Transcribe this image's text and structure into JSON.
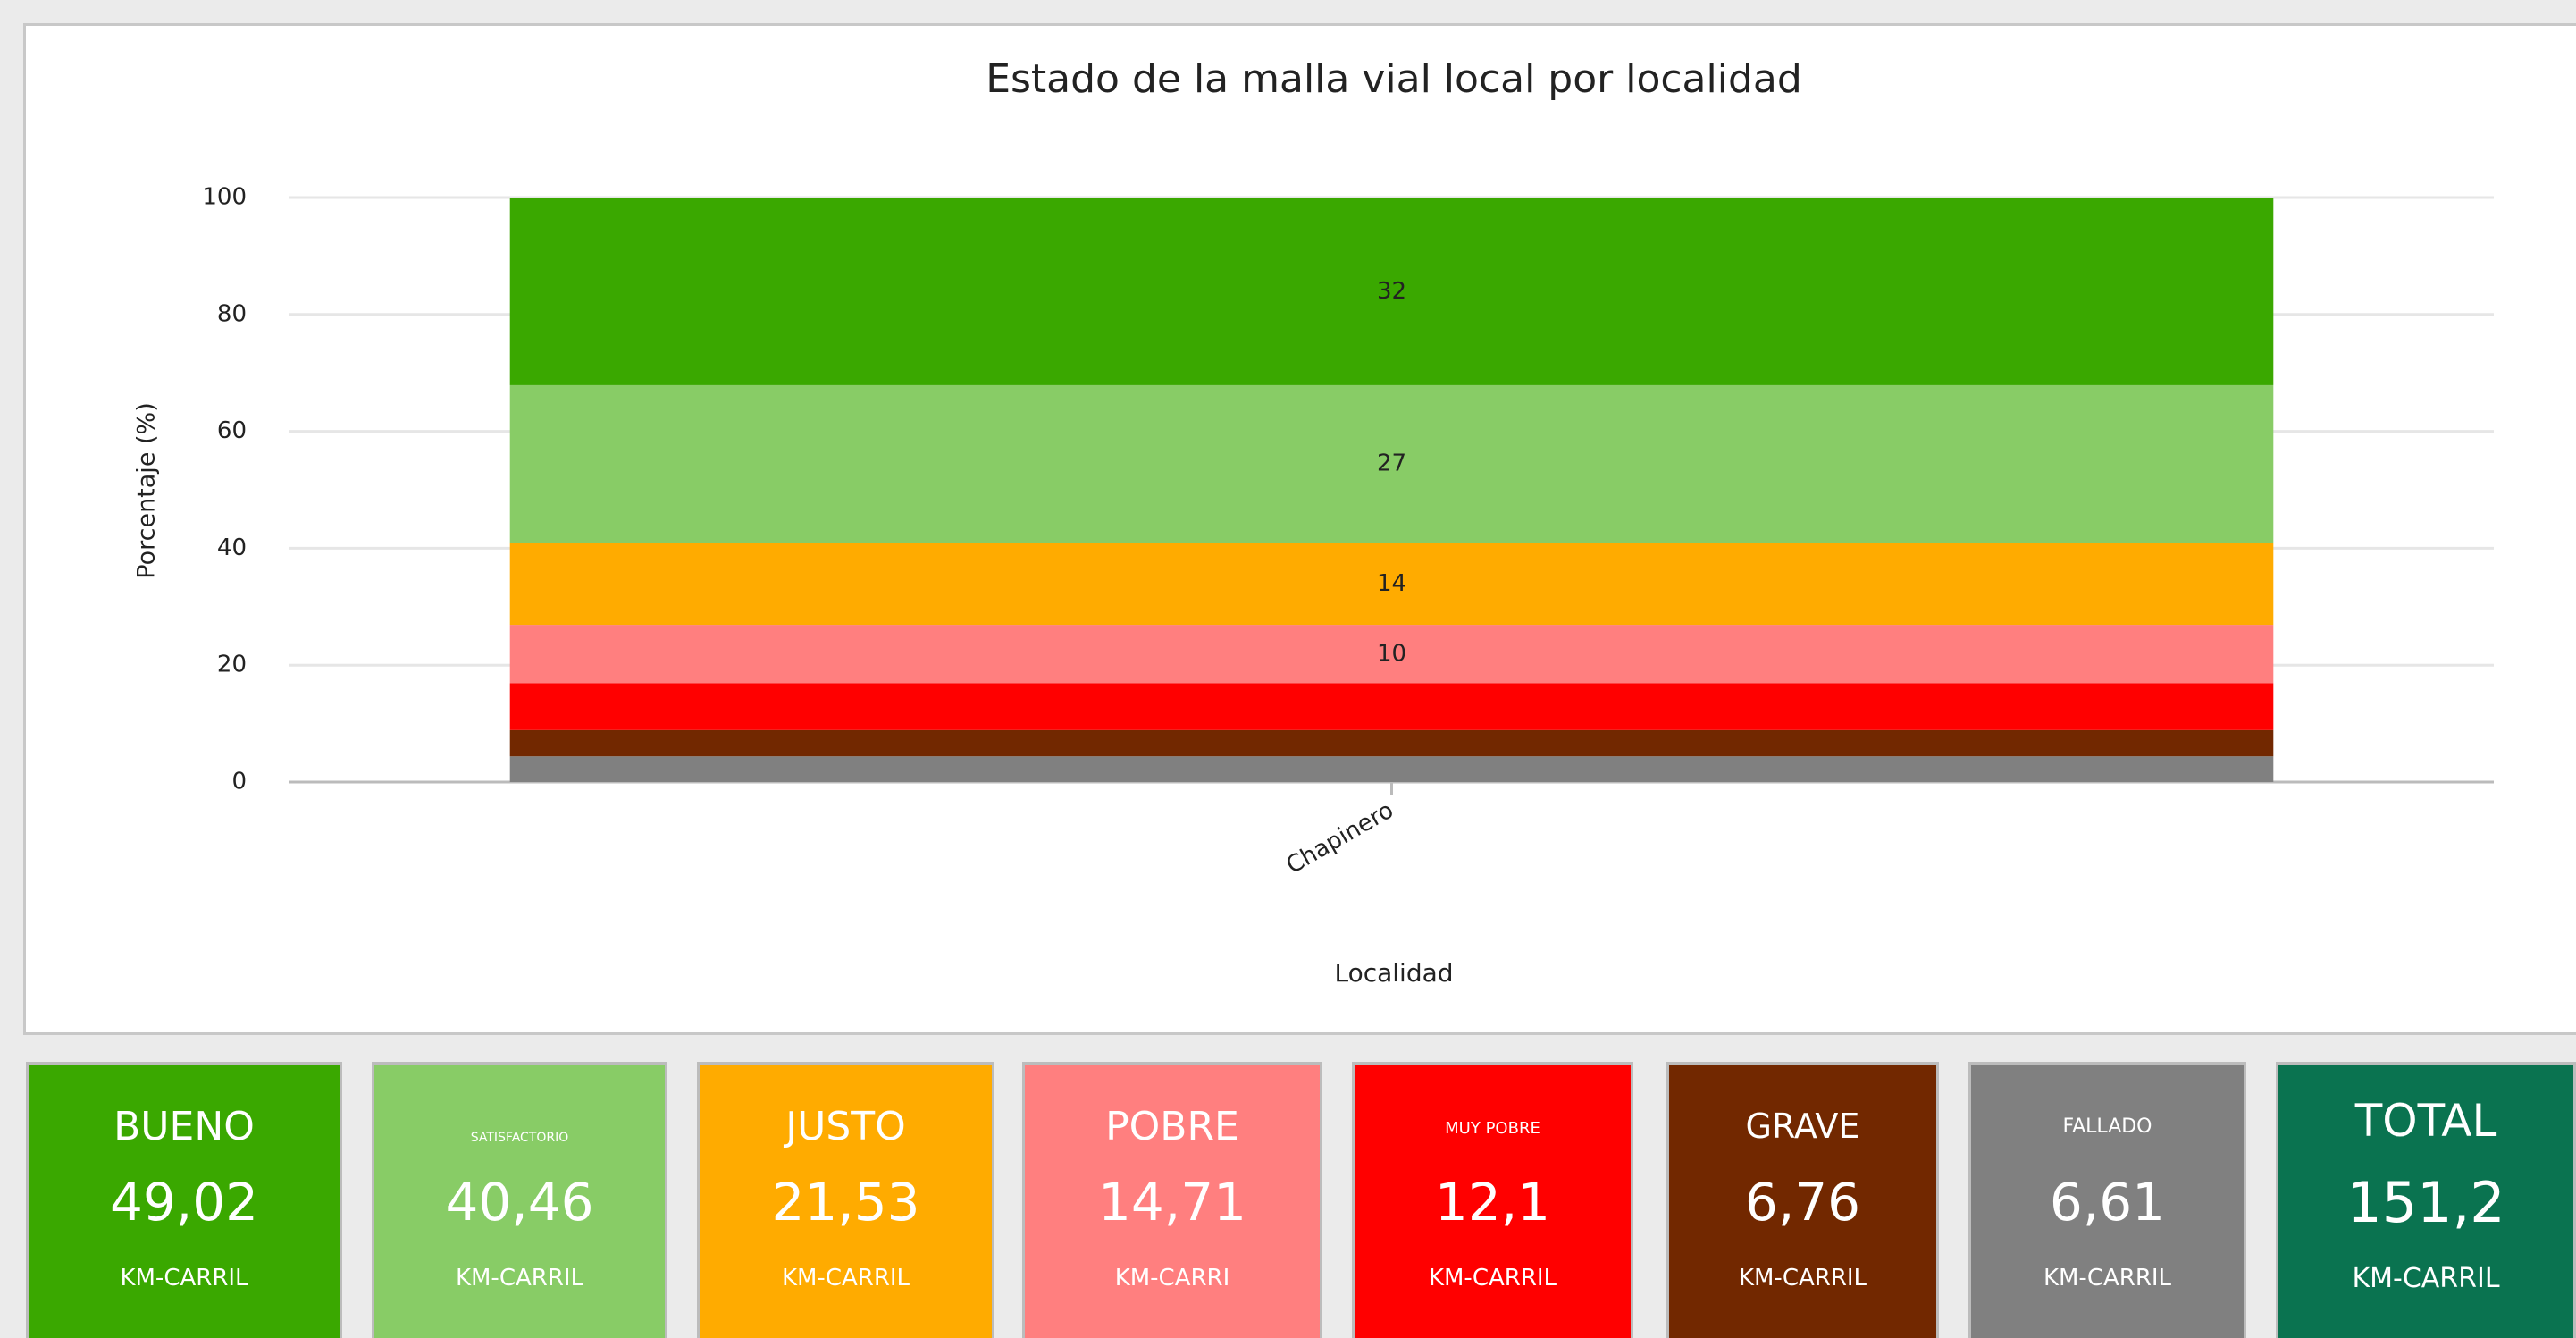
{
  "chart_data": {
    "type": "stacked-bar",
    "title": "Estado de la malla vial local por localidad",
    "y_label": "Porcentaje (%)",
    "x_label": "Localidad",
    "categories": [
      "Chapinero"
    ],
    "ylim": [
      0,
      100
    ],
    "yticks": [
      0,
      20,
      40,
      60,
      80,
      100
    ],
    "grid": true,
    "series": [
      {
        "color": "#808080",
        "values": [
          4.4
        ],
        "labeled": false
      },
      {
        "color": "#722800",
        "values": [
          4.5
        ],
        "labeled": false
      },
      {
        "color": "#ff0000",
        "values": [
          8
        ],
        "labeled": false
      },
      {
        "color": "#ff7f7f",
        "values": [
          10
        ],
        "labeled": true
      },
      {
        "color": "#ffab00",
        "values": [
          14
        ],
        "labeled": true
      },
      {
        "color": "#88cc66",
        "values": [
          27
        ],
        "labeled": true
      },
      {
        "color": "#3aa800",
        "values": [
          32
        ],
        "labeled": true
      }
    ]
  },
  "cards": [
    {
      "label": "BUENO",
      "value": "49,02",
      "unit": "KM-CARRIL",
      "color": "#3aa800"
    },
    {
      "label": "SATISFACTORIO",
      "value": "40,46",
      "unit": "KM-CARRIL",
      "color": "#88cc66"
    },
    {
      "label": "JUSTO",
      "value": "21,53",
      "unit": "KM-CARRIL",
      "color": "#ffab00"
    },
    {
      "label": "POBRE",
      "value": "14,71",
      "unit": "KM-CARRI",
      "color": "#ff7f7f"
    },
    {
      "label": "MUY POBRE",
      "value": "12,1",
      "unit": "KM-CARRIL",
      "color": "#ff0000"
    },
    {
      "label": "GRAVE",
      "value": "6,76",
      "unit": "KM-CARRIL",
      "color": "#722800"
    },
    {
      "label": "FALLADO",
      "value": "6,61",
      "unit": "KM-CARRIL",
      "color": "#808080"
    },
    {
      "label": "TOTAL",
      "value": "151,2",
      "unit": "KM-CARRIL",
      "color": "#0a7350"
    }
  ]
}
